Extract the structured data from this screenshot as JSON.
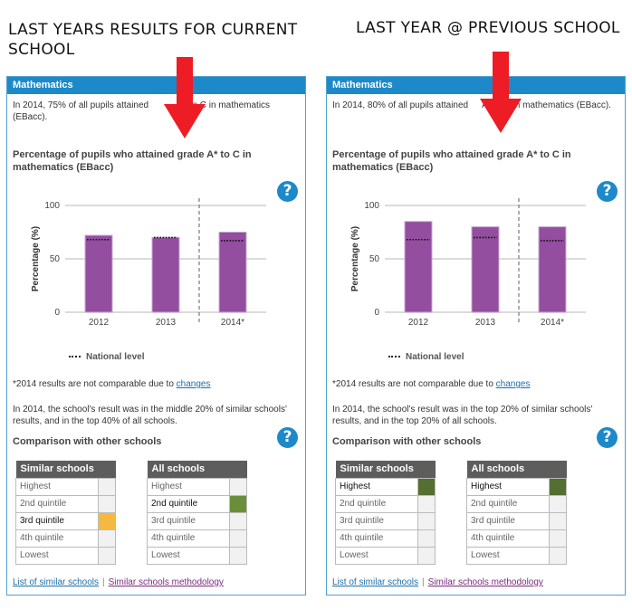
{
  "headings": {
    "left": "LAST YEARS RESULTS FOR CURRENT SCHOOL",
    "right": "LAST YEAR @ PREVIOUS SCHOOL"
  },
  "colors": {
    "header_blue": "#1d89c8",
    "bar_purple": "#934ea0",
    "highlight_amber": "#f5b942",
    "highlight_green": "#6a8f3b",
    "highlight_darkgreen": "#556e32",
    "arrow_red": "#ee1c24"
  },
  "panels": [
    {
      "header": "Mathematics",
      "intro_a": "In 2014, 75% of all pupils attained",
      "intro_b": "to C in mathematics (EBacc).",
      "chart_title": "Percentage of pupils who attained grade A* to C in mathematics (EBacc)",
      "legend_label": "National level",
      "note_text": "*2014 results are not comparable due to ",
      "note_link": "changes",
      "result_text": "In 2014, the school's result was in the middle 20% of similar schools' results, and in the top 40% of all schools.",
      "comparison_title": "Comparison with other schools",
      "similar_header": "Similar schools",
      "all_header": "All schools",
      "rows": [
        "Highest",
        "2nd quintile",
        "3rd quintile",
        "4th quintile",
        "Lowest"
      ],
      "similar_active": 2,
      "similar_color": "#f5b942",
      "all_active": 1,
      "all_color": "#6a8f3b",
      "footer_link1": "List of similar schools",
      "footer_sep": "|",
      "footer_link2": "Similar schools methodology"
    },
    {
      "header": "Mathematics",
      "intro_a": "In 2014, 80% of all pupils attained",
      "intro_b": "A* to C in mathematics (EBacc).",
      "chart_title": "Percentage of pupils who attained grade A* to C in mathematics (EBacc)",
      "legend_label": "National level",
      "note_text": "*2014 results are not comparable due to ",
      "note_link": "changes",
      "result_text": "In 2014, the school's result was in the top 20% of similar schools' results, and in the top 20% of all schools.",
      "comparison_title": "Comparison with other schools",
      "similar_header": "Similar schools",
      "all_header": "All schools",
      "rows": [
        "Highest",
        "2nd quintile",
        "3rd quintile",
        "4th quintile",
        "Lowest"
      ],
      "similar_active": 0,
      "similar_color": "#556e32",
      "all_active": 0,
      "all_color": "#556e32",
      "footer_link1": "List of similar schools",
      "footer_sep": "|",
      "footer_link2": "Similar schools methodology"
    }
  ],
  "chart_data": [
    {
      "type": "bar",
      "title": "Percentage of pupils who attained grade A* to C in mathematics (EBacc)",
      "categories": [
        "2012",
        "2013",
        "2014*"
      ],
      "ylabel": "Percentage (%)",
      "ylim": [
        0,
        100
      ],
      "yticks": [
        "0",
        "50",
        "100"
      ],
      "grid": true,
      "series": [
        {
          "values": [
            72,
            70,
            75
          ]
        },
        {
          "name": "National level",
          "values": [
            68,
            70,
            67
          ]
        }
      ]
    },
    {
      "type": "bar",
      "title": "Percentage of pupils who attained grade A* to C in mathematics (EBacc)",
      "categories": [
        "2012",
        "2013",
        "2014*"
      ],
      "ylabel": "Percentage (%)",
      "ylim": [
        0,
        100
      ],
      "yticks": [
        "0",
        "50",
        "100"
      ],
      "grid": true,
      "series": [
        {
          "values": [
            85,
            80,
            80
          ]
        },
        {
          "name": "National level",
          "values": [
            68,
            70,
            67
          ]
        }
      ]
    }
  ]
}
